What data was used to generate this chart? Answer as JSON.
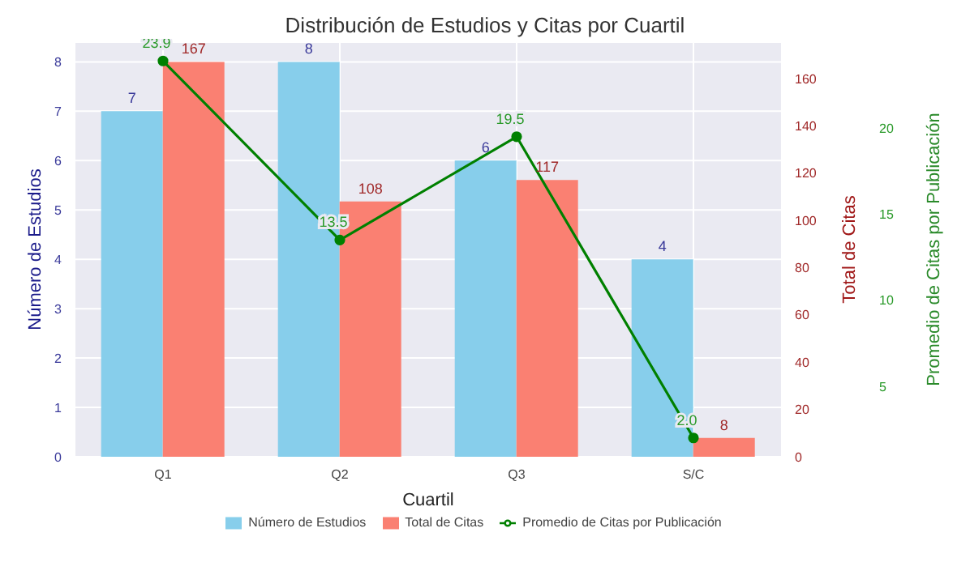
{
  "chart_data": {
    "type": "bar",
    "title": "Distribución de Estudios y Citas por Cuartil",
    "xlabel": "Cuartil",
    "ylabel": "Número de Estudios",
    "y2label": "Total de Citas",
    "y3label": "Promedio de Citas por Publicación",
    "categories": [
      "Q1",
      "Q2",
      "Q3",
      "S/C"
    ],
    "series": [
      {
        "name": "Número de Estudios",
        "color": "#87ceeb",
        "values": [
          7,
          8,
          6,
          4
        ]
      },
      {
        "name": "Total de Citas",
        "color": "#fa8072",
        "values": [
          167,
          108,
          117,
          8
        ],
        "axis": "y2"
      },
      {
        "name": "Promedio de Citas por Publicación",
        "type": "line",
        "color": "#008000",
        "values": [
          23.9,
          13.5,
          19.5,
          2.0
        ],
        "axis": "y3",
        "marker": "circle",
        "value_labels": [
          "23.9",
          "13.5",
          "19.5",
          "2.0"
        ]
      }
    ],
    "ylim": [
      0,
      8.4
    ],
    "yticks": [
      0,
      1,
      2,
      3,
      4,
      5,
      6,
      7,
      8
    ],
    "y2lim": [
      0,
      175.35
    ],
    "y2ticks": [
      0,
      20,
      40,
      60,
      80,
      100,
      120,
      140,
      160
    ],
    "y3lim": [
      0.905,
      24.995
    ],
    "y3ticks": [
      5,
      10,
      15,
      20
    ],
    "grid": true,
    "legend": "bottom",
    "data_labels": true
  }
}
